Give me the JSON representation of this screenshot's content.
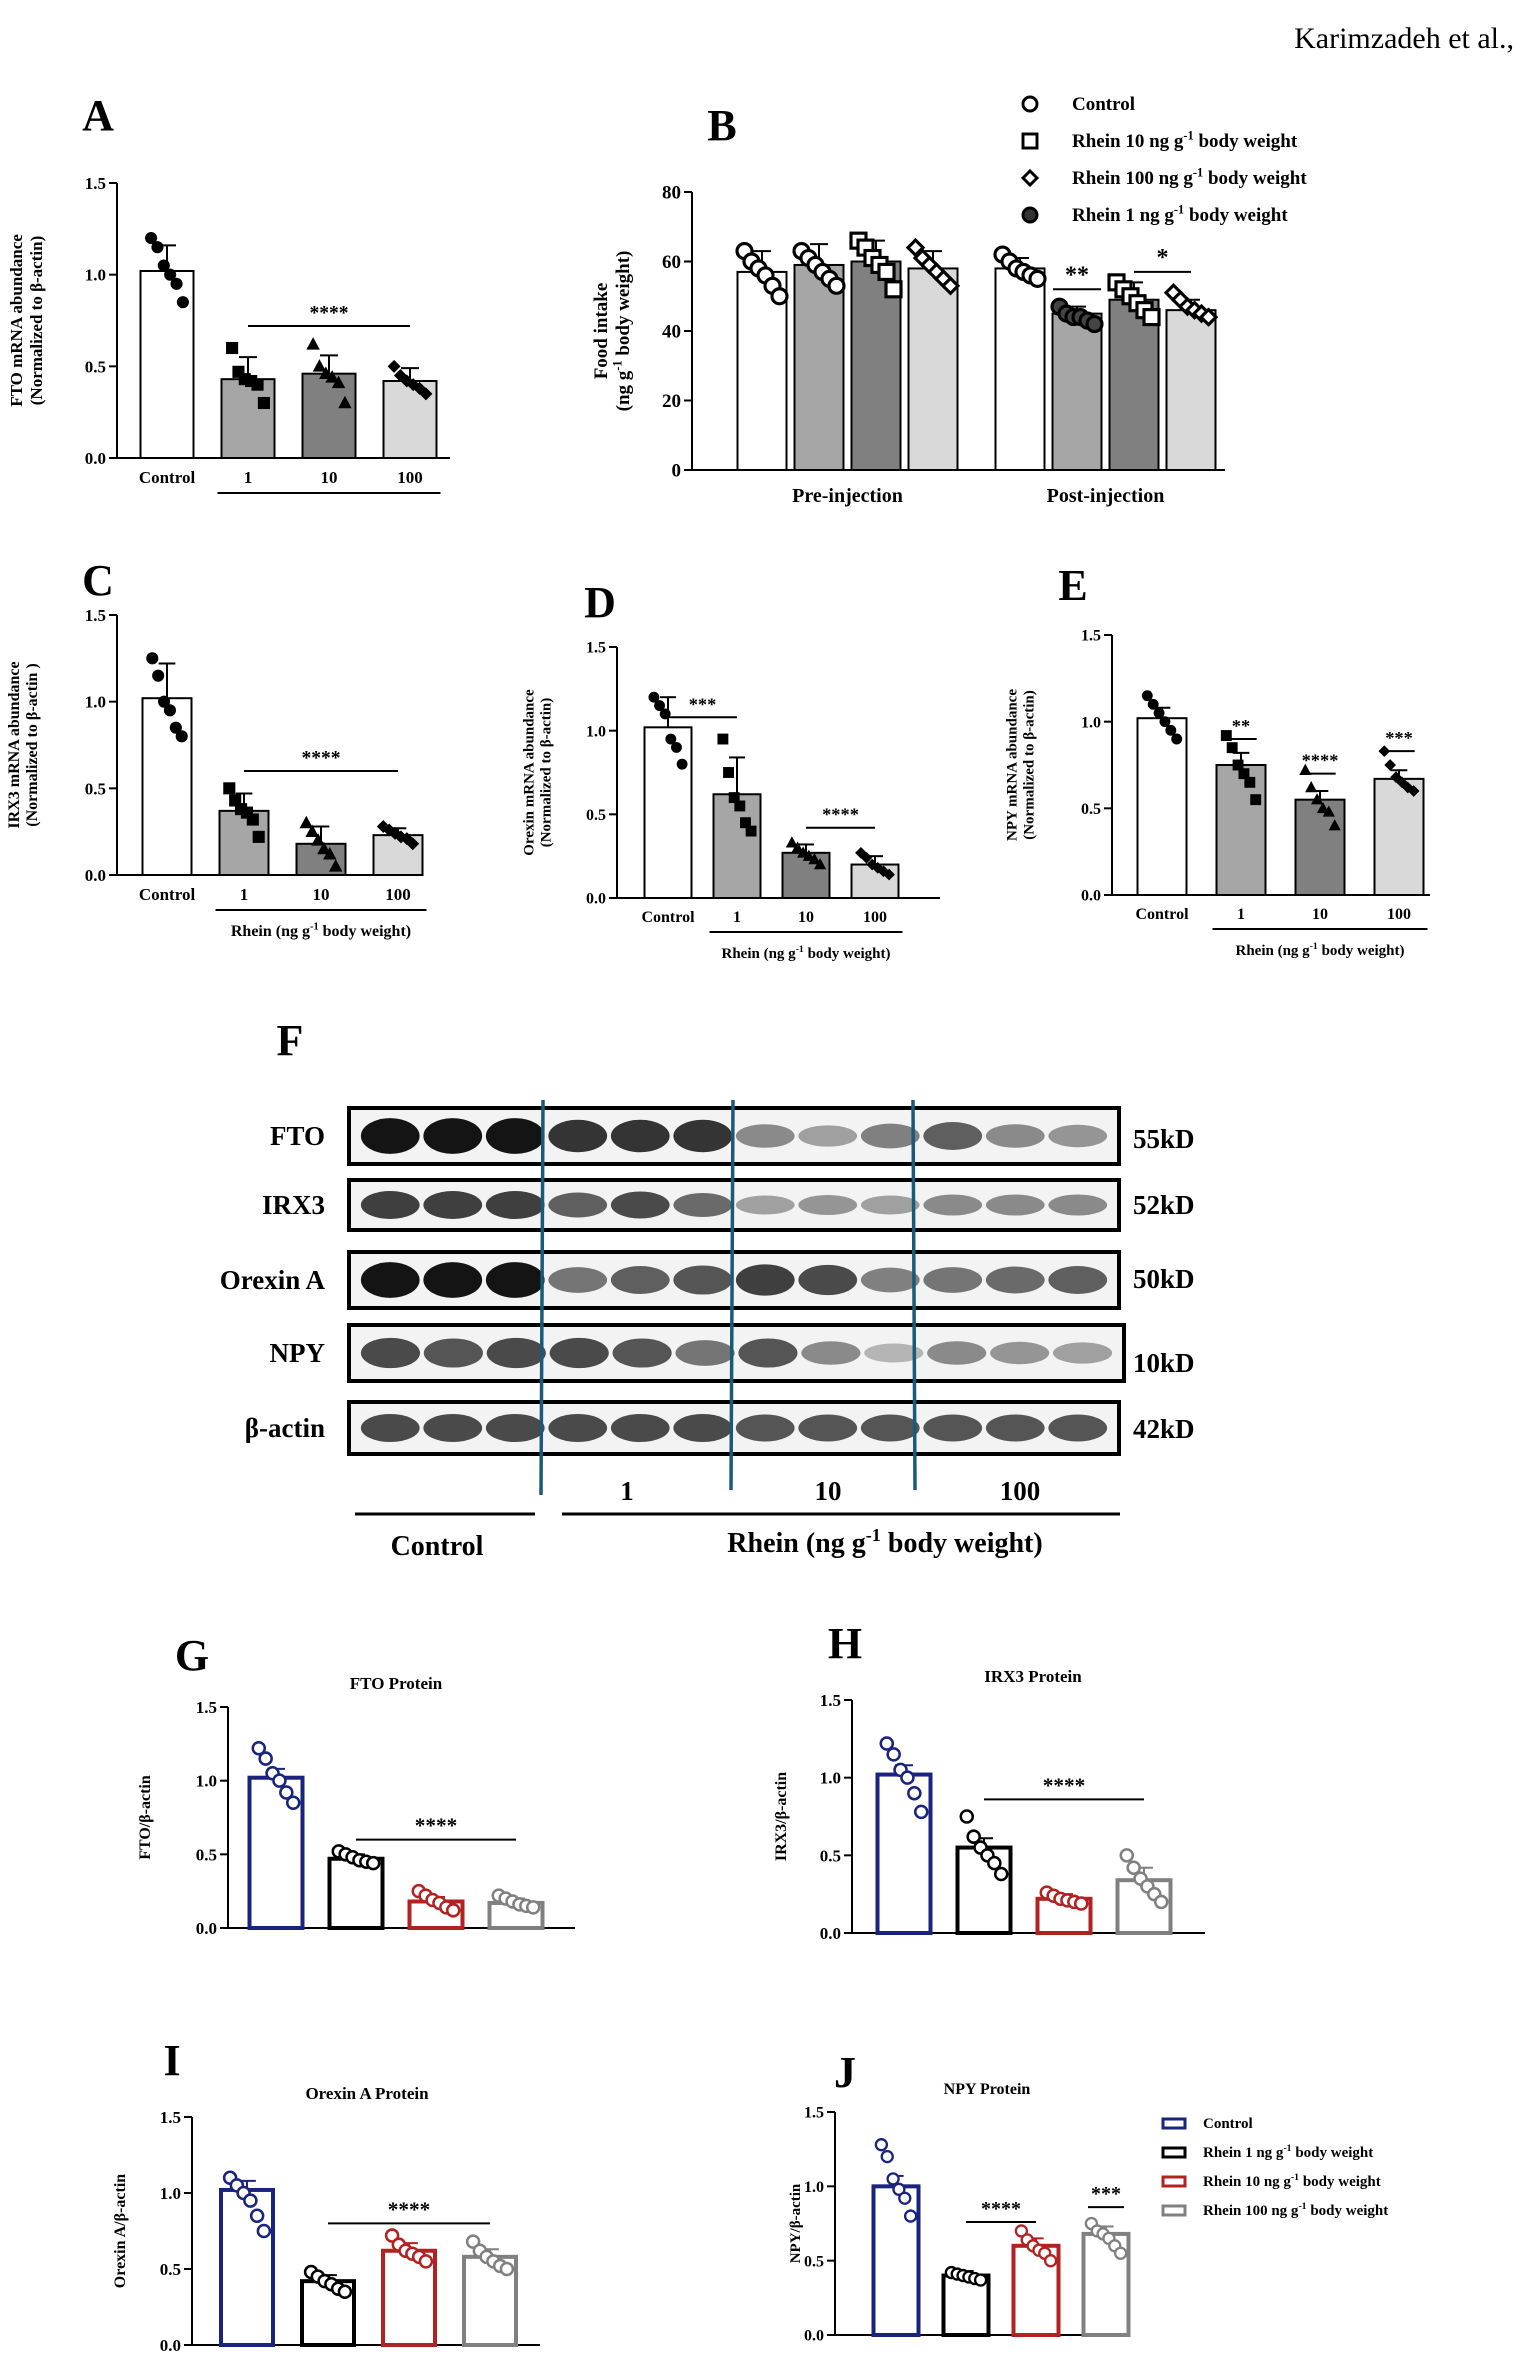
{
  "header": {
    "author": "Karimzadeh et al.,"
  },
  "chart_data": [
    {
      "panel": "A",
      "type": "bar",
      "ylabel_lines": [
        "FTO mRNA abundance",
        "(Normalized to β-actin)"
      ],
      "ylim": [
        0,
        1.5
      ],
      "yticks": [
        "0.0",
        "0.5",
        "1.0",
        "1.5"
      ],
      "categories": [
        "Control",
        "1",
        "10",
        "100"
      ],
      "values": [
        1.02,
        0.43,
        0.46,
        0.42
      ],
      "errors": [
        0.14,
        0.12,
        0.1,
        0.07
      ],
      "colors": [
        "#ffffff",
        "#a6a6a6",
        "#808080",
        "#d9d9d9"
      ],
      "points": [
        [
          1.2,
          1.15,
          1.05,
          1.0,
          0.95,
          0.85
        ],
        [
          0.6,
          0.47,
          0.43,
          0.42,
          0.4,
          0.3
        ],
        [
          0.62,
          0.5,
          0.46,
          0.44,
          0.41,
          0.3
        ],
        [
          0.5,
          0.45,
          0.42,
          0.4,
          0.38,
          0.35
        ]
      ],
      "markers": [
        "circle",
        "square",
        "triangle",
        "diamond"
      ],
      "xlabel": "",
      "annotations": [
        {
          "text": "****",
          "from": 1,
          "to": 3,
          "y": 0.72
        }
      ]
    },
    {
      "panel": "B",
      "type": "bar",
      "ylabel_lines": [
        "Food intake",
        "(ng g⁻¹ body weight)"
      ],
      "ylim": [
        0,
        80
      ],
      "yticks": [
        "0",
        "20",
        "40",
        "60",
        "80"
      ],
      "categories": [
        "Pre-injection",
        "Post-injection"
      ],
      "series": [
        {
          "name": "Control",
          "values": [
            57,
            58
          ],
          "errors": [
            6,
            3
          ],
          "color": "#ffffff",
          "marker": "circle"
        },
        {
          "name": "Rhein 1 ng g⁻¹ body weight",
          "values": [
            59,
            45
          ],
          "errors": [
            6,
            2
          ],
          "color": "#a6a6a6",
          "marker": "circle"
        },
        {
          "name": "Rhein 10 ng g⁻¹ body weight",
          "values": [
            60,
            49
          ],
          "errors": [
            6,
            5
          ],
          "color": "#808080",
          "marker": "square"
        },
        {
          "name": "Rhein 100 ng g⁻¹ body weight",
          "values": [
            58,
            46
          ],
          "errors": [
            5,
            3
          ],
          "color": "#d9d9d9",
          "marker": "diamond"
        }
      ],
      "points": [
        [
          [
            63,
            60,
            58,
            56,
            53,
            50
          ],
          [
            62,
            60,
            58,
            57,
            56,
            55
          ]
        ],
        [
          [
            63,
            61,
            59,
            57,
            55,
            53
          ],
          [
            47,
            45,
            44,
            44,
            43,
            42
          ]
        ],
        [
          [
            66,
            64,
            61,
            59,
            57,
            52
          ],
          [
            54,
            52,
            50,
            48,
            46,
            44
          ]
        ],
        [
          [
            64,
            61,
            59,
            57,
            55,
            53
          ],
          [
            51,
            49,
            47,
            46,
            45,
            44
          ]
        ]
      ],
      "legend_order": [
        "Control",
        "Rhein 10 ng g⁻¹ body weight",
        "Rhein 100 ng g⁻¹ body weight",
        "Rhein 1 ng g⁻¹ body weight"
      ],
      "legend_markers": [
        "open-circle",
        "open-square",
        "open-diamond",
        "filled-circle"
      ],
      "legend": {
        "control": "Control",
        "r10_main": "Rhein 10 ng g",
        "r100_main": "Rhein 100 ng g",
        "r1_main": "Rhein 1 ng g",
        "exp": "-1",
        "tail": "body weight"
      },
      "annotations": [
        {
          "text": "**",
          "group": 1,
          "from": 1,
          "to": 1,
          "y": 52
        },
        {
          "text": "*",
          "group": 1,
          "from": 2,
          "to": 3,
          "y": 57
        }
      ]
    },
    {
      "panel": "C",
      "type": "bar",
      "ylabel_lines": [
        "IRX3 mRNA abundance",
        "(Normalized to β-actin )"
      ],
      "ylim": [
        0,
        1.5
      ],
      "yticks": [
        "0.0",
        "0.5",
        "1.0",
        "1.5"
      ],
      "categories": [
        "Control",
        "1",
        "10",
        "100"
      ],
      "values": [
        1.02,
        0.37,
        0.18,
        0.23
      ],
      "errors": [
        0.2,
        0.1,
        0.1,
        0.04
      ],
      "colors": [
        "#ffffff",
        "#a6a6a6",
        "#808080",
        "#d9d9d9"
      ],
      "points": [
        [
          1.25,
          1.15,
          1.0,
          0.95,
          0.85,
          0.8
        ],
        [
          0.5,
          0.43,
          0.38,
          0.36,
          0.32,
          0.22
        ],
        [
          0.3,
          0.25,
          0.2,
          0.15,
          0.12,
          0.05
        ],
        [
          0.28,
          0.26,
          0.24,
          0.22,
          0.21,
          0.18
        ]
      ],
      "markers": [
        "circle",
        "square",
        "triangle",
        "diamond"
      ],
      "xlabel": {
        "main": "Rhein (ng g",
        "exp": "-1",
        "tail": " body weight)"
      },
      "annotations": [
        {
          "text": "****",
          "from": 1,
          "to": 3,
          "y": 0.6
        }
      ]
    },
    {
      "panel": "D",
      "type": "bar",
      "ylabel_lines": [
        "Orexin mRNA abundance",
        "(Normalized to β-actin)"
      ],
      "ylim": [
        0,
        1.5
      ],
      "yticks": [
        "0.0",
        "0.5",
        "1.0",
        "1.5"
      ],
      "categories": [
        "Control",
        "1",
        "10",
        "100"
      ],
      "values": [
        1.02,
        0.62,
        0.27,
        0.2
      ],
      "errors": [
        0.18,
        0.22,
        0.05,
        0.05
      ],
      "colors": [
        "#ffffff",
        "#a6a6a6",
        "#808080",
        "#d9d9d9"
      ],
      "points": [
        [
          1.2,
          1.15,
          1.1,
          0.95,
          0.9,
          0.8
        ],
        [
          0.95,
          0.75,
          0.6,
          0.55,
          0.45,
          0.4
        ],
        [
          0.33,
          0.3,
          0.27,
          0.25,
          0.23,
          0.2
        ],
        [
          0.27,
          0.24,
          0.2,
          0.18,
          0.16,
          0.14
        ]
      ],
      "markers": [
        "circle",
        "square",
        "triangle",
        "diamond"
      ],
      "xlabel": {
        "main": "Rhein (ng g",
        "exp": "-1",
        "tail": " body weight)"
      },
      "annotations": [
        {
          "text": "***",
          "from": 0,
          "to": 1,
          "y": 1.08
        },
        {
          "text": "****",
          "from": 2,
          "to": 3,
          "y": 0.42
        }
      ]
    },
    {
      "panel": "E",
      "type": "bar",
      "ylabel_lines": [
        "NPY mRNA abundance",
        "(Normalized to β-actin)"
      ],
      "ylim": [
        0,
        1.5
      ],
      "yticks": [
        "0.0",
        "0.5",
        "1.0",
        "1.5"
      ],
      "categories": [
        "Control",
        "1",
        "10",
        "100"
      ],
      "values": [
        1.02,
        0.75,
        0.55,
        0.67
      ],
      "errors": [
        0.06,
        0.07,
        0.05,
        0.05
      ],
      "colors": [
        "#ffffff",
        "#a6a6a6",
        "#808080",
        "#d9d9d9"
      ],
      "points": [
        [
          1.15,
          1.1,
          1.05,
          1.0,
          0.95,
          0.9
        ],
        [
          0.92,
          0.85,
          0.75,
          0.7,
          0.65,
          0.55
        ],
        [
          0.72,
          0.62,
          0.55,
          0.5,
          0.48,
          0.4
        ],
        [
          0.83,
          0.75,
          0.68,
          0.65,
          0.62,
          0.6
        ]
      ],
      "markers": [
        "circle",
        "square",
        "triangle",
        "diamond"
      ],
      "xlabel": {
        "main": "Rhein (ng g",
        "exp": "-1",
        "tail": " body weight)"
      },
      "annotations": [
        {
          "text": "**",
          "from": 1,
          "to": 1,
          "y": 0.9
        },
        {
          "text": "****",
          "from": 2,
          "to": 2,
          "y": 0.7
        },
        {
          "text": "***",
          "from": 3,
          "to": 3,
          "y": 0.83
        }
      ]
    },
    {
      "panel": "G",
      "type": "bar",
      "title": "FTO Protein",
      "ylabel_lines": [
        "FTO/β-actin"
      ],
      "ylim": [
        0,
        1.5
      ],
      "yticks": [
        "0.0",
        "0.5",
        "1.0",
        "1.5"
      ],
      "categories": [
        "Control",
        "Rhein 1",
        "Rhein 10",
        "Rhein 100"
      ],
      "values": [
        1.02,
        0.47,
        0.18,
        0.17
      ],
      "errors": [
        0.06,
        0.03,
        0.03,
        0.03
      ],
      "colors": [
        "#1a237e",
        "#000000",
        "#b22222",
        "#808080"
      ],
      "points": [
        [
          1.22,
          1.15,
          1.05,
          1.0,
          0.92,
          0.85
        ],
        [
          0.52,
          0.5,
          0.48,
          0.46,
          0.45,
          0.44
        ],
        [
          0.25,
          0.22,
          0.19,
          0.17,
          0.14,
          0.12
        ],
        [
          0.22,
          0.2,
          0.18,
          0.16,
          0.15,
          0.14
        ]
      ],
      "xlabel": "",
      "annotations": [
        {
          "text": "****",
          "from": 1,
          "to": 3,
          "y": 0.6
        }
      ]
    },
    {
      "panel": "H",
      "type": "bar",
      "title": "IRX3 Protein",
      "ylabel_lines": [
        "IRX3/β-actin"
      ],
      "ylim": [
        0,
        1.5
      ],
      "yticks": [
        "0.0",
        "0.5",
        "1.0",
        "1.5"
      ],
      "categories": [
        "Control",
        "Rhein 1",
        "Rhein 10",
        "Rhein 100"
      ],
      "values": [
        1.02,
        0.55,
        0.22,
        0.34
      ],
      "errors": [
        0.06,
        0.06,
        0.03,
        0.08
      ],
      "colors": [
        "#1a237e",
        "#000000",
        "#b22222",
        "#808080"
      ],
      "points": [
        [
          1.22,
          1.15,
          1.05,
          1.0,
          0.9,
          0.78
        ],
        [
          0.75,
          0.62,
          0.55,
          0.5,
          0.45,
          0.38
        ],
        [
          0.26,
          0.24,
          0.22,
          0.21,
          0.2,
          0.19
        ],
        [
          0.5,
          0.42,
          0.35,
          0.3,
          0.25,
          0.2
        ]
      ],
      "xlabel": "",
      "annotations": [
        {
          "text": "****",
          "from": 1,
          "to": 3,
          "y": 0.86
        }
      ]
    },
    {
      "panel": "I",
      "type": "bar",
      "title": "Orexin A Protein",
      "ylabel_lines": [
        "Orexin A/β-actin"
      ],
      "ylim": [
        0,
        1.5
      ],
      "yticks": [
        "0.0",
        "0.5",
        "1.0",
        "1.5"
      ],
      "categories": [
        "Control",
        "Rhein 1",
        "Rhein 10",
        "Rhein 100"
      ],
      "values": [
        1.02,
        0.42,
        0.62,
        0.58
      ],
      "errors": [
        0.06,
        0.04,
        0.05,
        0.05
      ],
      "colors": [
        "#1a237e",
        "#000000",
        "#b22222",
        "#808080"
      ],
      "points": [
        [
          1.1,
          1.05,
          1.0,
          0.95,
          0.85,
          0.75
        ],
        [
          0.48,
          0.45,
          0.42,
          0.4,
          0.37,
          0.35
        ],
        [
          0.72,
          0.66,
          0.62,
          0.6,
          0.58,
          0.55
        ],
        [
          0.68,
          0.62,
          0.58,
          0.55,
          0.52,
          0.5
        ]
      ],
      "xlabel": "",
      "annotations": [
        {
          "text": "****",
          "from": 1,
          "to": 3,
          "y": 0.8
        }
      ]
    },
    {
      "panel": "J",
      "type": "bar",
      "title": "NPY Protein",
      "ylabel_lines": [
        "NPY/β-actin"
      ],
      "ylim": [
        0,
        1.5
      ],
      "yticks": [
        "0.0",
        "0.5",
        "1.0",
        "1.5"
      ],
      "categories": [
        "Control",
        "Rhein 1",
        "Rhein 10",
        "Rhein 100"
      ],
      "values": [
        1.0,
        0.4,
        0.6,
        0.68
      ],
      "errors": [
        0.07,
        0.03,
        0.05,
        0.05
      ],
      "colors": [
        "#1a237e",
        "#000000",
        "#b22222",
        "#808080"
      ],
      "points": [
        [
          1.28,
          1.2,
          1.05,
          0.98,
          0.92,
          0.8
        ],
        [
          0.42,
          0.41,
          0.4,
          0.39,
          0.38,
          0.37
        ],
        [
          0.7,
          0.64,
          0.6,
          0.57,
          0.55,
          0.5
        ],
        [
          0.75,
          0.7,
          0.68,
          0.65,
          0.6,
          0.55
        ]
      ],
      "xlabel": "",
      "annotations": [
        {
          "text": "****",
          "from": 1,
          "to": 2,
          "y": 0.76
        },
        {
          "text": "***",
          "from": 3,
          "to": 3,
          "y": 0.86
        }
      ],
      "legend": [
        {
          "label": "Control",
          "color": "#1a237e"
        },
        {
          "label": "Rhein 1 ng g",
          "exp": "-1",
          "tail": " body weight",
          "color": "#000000"
        },
        {
          "label": "Rhein 10 ng g",
          "exp": "-1",
          "tail": " body weight",
          "color": "#b22222"
        },
        {
          "label": "Rhein 100 ng g",
          "exp": "-1",
          "tail": " body weight",
          "color": "#808080"
        }
      ]
    }
  ],
  "panel_letters": [
    "A",
    "B",
    "C",
    "D",
    "E",
    "F",
    "G",
    "H",
    "I",
    "J"
  ],
  "blot": {
    "proteins": [
      "FTO",
      "IRX3",
      "Orexin A",
      "NPY",
      "β-actin"
    ],
    "sizes": [
      "55kD",
      "52kD",
      "50kD",
      "10kD",
      "42kD"
    ],
    "group_labels": [
      "1",
      "10",
      "100"
    ],
    "control_label": "Control",
    "rhein_label": {
      "main": "Rhein (ng g",
      "exp": "-1",
      "tail": "  body weight)"
    },
    "band_intensity": [
      [
        1.0,
        1.0,
        1.0,
        0.85,
        0.85,
        0.85,
        0.45,
        0.35,
        0.5,
        0.65,
        0.45,
        0.4
      ],
      [
        0.8,
        0.8,
        0.8,
        0.65,
        0.75,
        0.6,
        0.35,
        0.4,
        0.35,
        0.45,
        0.45,
        0.45
      ],
      [
        1.0,
        1.0,
        1.0,
        0.55,
        0.65,
        0.7,
        0.8,
        0.75,
        0.5,
        0.55,
        0.6,
        0.65
      ],
      [
        0.75,
        0.7,
        0.75,
        0.75,
        0.7,
        0.55,
        0.7,
        0.45,
        0.25,
        0.45,
        0.4,
        0.35
      ],
      [
        0.75,
        0.75,
        0.75,
        0.75,
        0.75,
        0.75,
        0.7,
        0.7,
        0.7,
        0.7,
        0.7,
        0.7
      ]
    ]
  }
}
